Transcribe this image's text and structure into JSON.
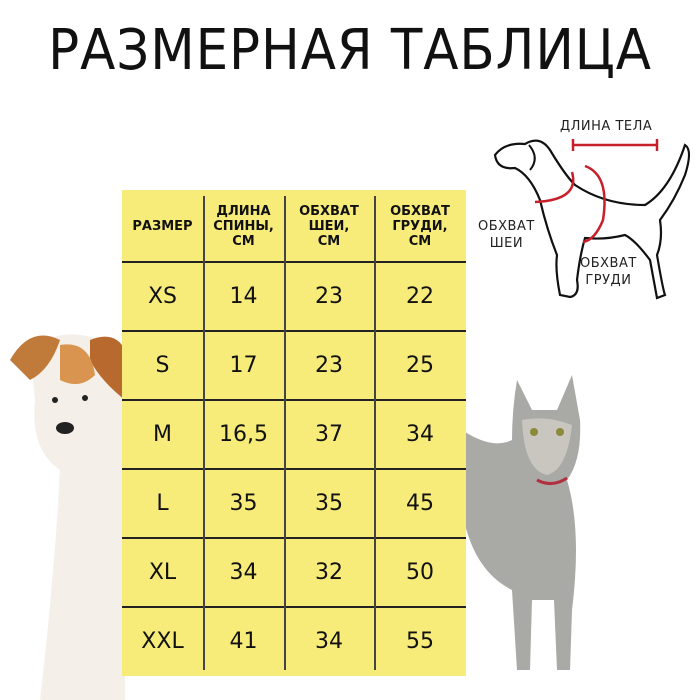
{
  "title": "РАЗМЕРНАЯ ТАБЛИЦА",
  "diagram": {
    "body_length": "ДЛИНА ТЕЛА",
    "neck_girth": [
      "ОБХВАТ",
      "ШЕИ"
    ],
    "chest_girth": [
      "ОБХВАТ",
      "ГРУДИ"
    ],
    "accent_color": "#c8202a"
  },
  "table": {
    "background": "#f7ec7a",
    "headers": [
      [
        "РАЗМЕР"
      ],
      [
        "ДЛИНА",
        "СПИНЫ,",
        "СМ"
      ],
      [
        "ОБХВАТ",
        "ШЕИ,",
        "СМ"
      ],
      [
        "ОБХВАТ",
        "ГРУДИ,",
        "СМ"
      ]
    ],
    "rows": [
      [
        "XS",
        "14",
        "23",
        "22"
      ],
      [
        "S",
        "17",
        "23",
        "25"
      ],
      [
        "M",
        "16,5",
        "37",
        "34"
      ],
      [
        "L",
        "35",
        "35",
        "45"
      ],
      [
        "XL",
        "34",
        "32",
        "50"
      ],
      [
        "XXL",
        "41",
        "34",
        "55"
      ]
    ]
  }
}
